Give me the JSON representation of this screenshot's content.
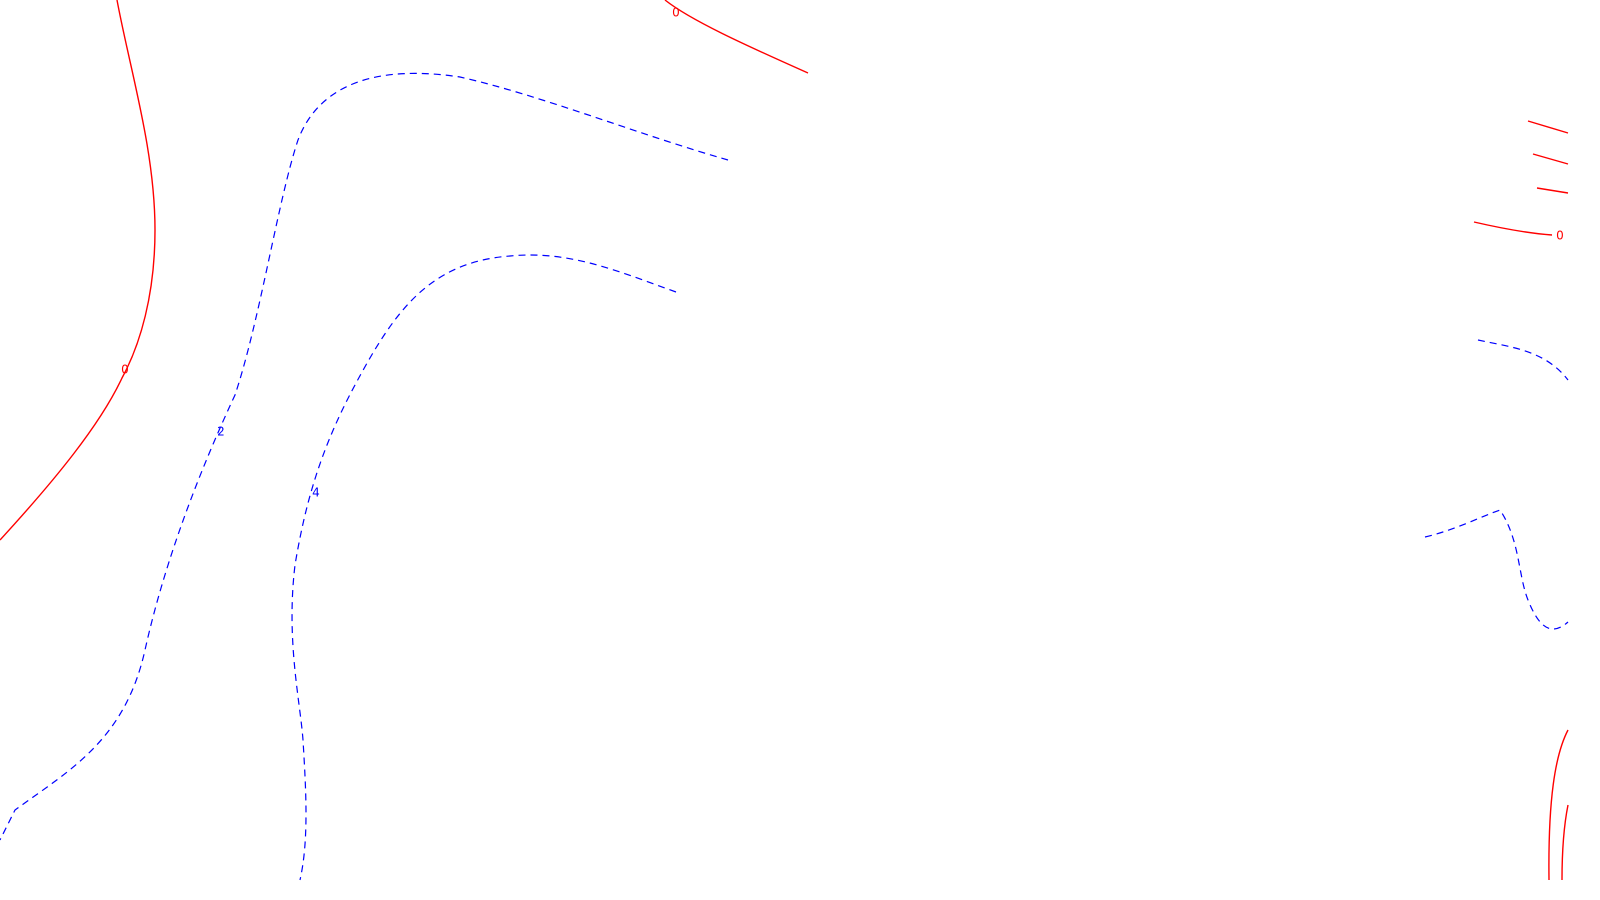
{
  "labels": {
    "zero_left": "0",
    "zero_top": "0",
    "zero_right": "0",
    "two_left": "2",
    "four_left": "4"
  },
  "colors": {
    "solid_contour": "#ff0000",
    "dashed_contour": "#0000ff",
    "background": "#ffffff"
  },
  "contour_levels": {
    "solid": 0,
    "dashed": [
      2,
      4
    ]
  }
}
